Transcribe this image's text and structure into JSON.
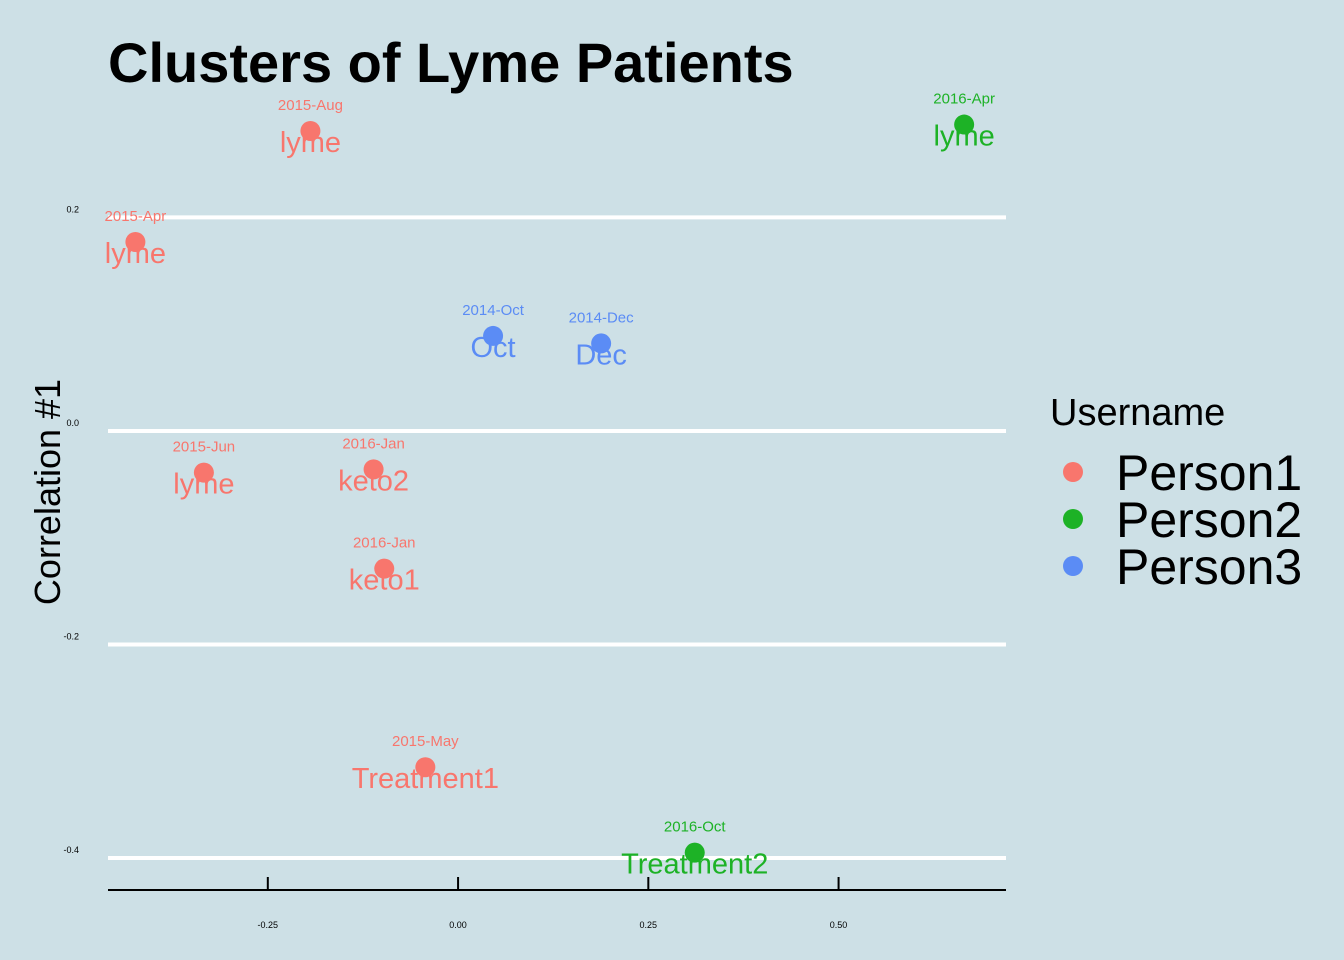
{
  "chart_data": {
    "type": "scatter",
    "title": "Clusters of Lyme Patients",
    "ylabel": "Correlation #1",
    "xlabel": "",
    "xlim": [
      -0.46,
      0.72
    ],
    "ylim": [
      -0.43,
      0.31
    ],
    "x_ticks": [
      "-0.25",
      "0.00",
      "0.25",
      "0.50"
    ],
    "x_tick_values": [
      -0.25,
      0.0,
      0.25,
      0.5
    ],
    "y_ticks": [
      "0.2",
      "0.0",
      "-0.2",
      "-0.4"
    ],
    "y_tick_values": [
      0.2,
      0.0,
      -0.2,
      -0.4
    ],
    "grid": "horizontal-major",
    "legend": {
      "title": "Username",
      "placement": "right",
      "entries": [
        {
          "name": "Person1",
          "color": "#f8766d"
        },
        {
          "name": "Person2",
          "color": "#1db226"
        },
        {
          "name": "Person3",
          "color": "#5b8cf5"
        }
      ]
    },
    "points": [
      {
        "x": -0.424,
        "y": 0.177,
        "label": "lyme",
        "date": "2015-Apr",
        "group": "Person1"
      },
      {
        "x": -0.194,
        "y": 0.281,
        "label": "lyme",
        "date": "2015-Aug",
        "group": "Person1"
      },
      {
        "x": -0.334,
        "y": -0.039,
        "label": "lyme",
        "date": "2015-Jun",
        "group": "Person1"
      },
      {
        "x": -0.111,
        "y": -0.036,
        "label": "keto2",
        "date": "2016-Jan",
        "group": "Person1"
      },
      {
        "x": -0.097,
        "y": -0.129,
        "label": "keto1",
        "date": "2016-Jan",
        "group": "Person1"
      },
      {
        "x": -0.043,
        "y": -0.315,
        "label": "Treatment1",
        "date": "2015-May",
        "group": "Person1"
      },
      {
        "x": 0.046,
        "y": 0.089,
        "label": "Oct",
        "date": "2014-Oct",
        "group": "Person3"
      },
      {
        "x": 0.188,
        "y": 0.082,
        "label": "Dec",
        "date": "2014-Dec",
        "group": "Person3"
      },
      {
        "x": 0.665,
        "y": 0.287,
        "label": "lyme",
        "date": "2016-Apr",
        "group": "Person2"
      },
      {
        "x": 0.311,
        "y": -0.395,
        "label": "Treatment2",
        "date": "2016-Oct",
        "group": "Person2"
      }
    ]
  }
}
